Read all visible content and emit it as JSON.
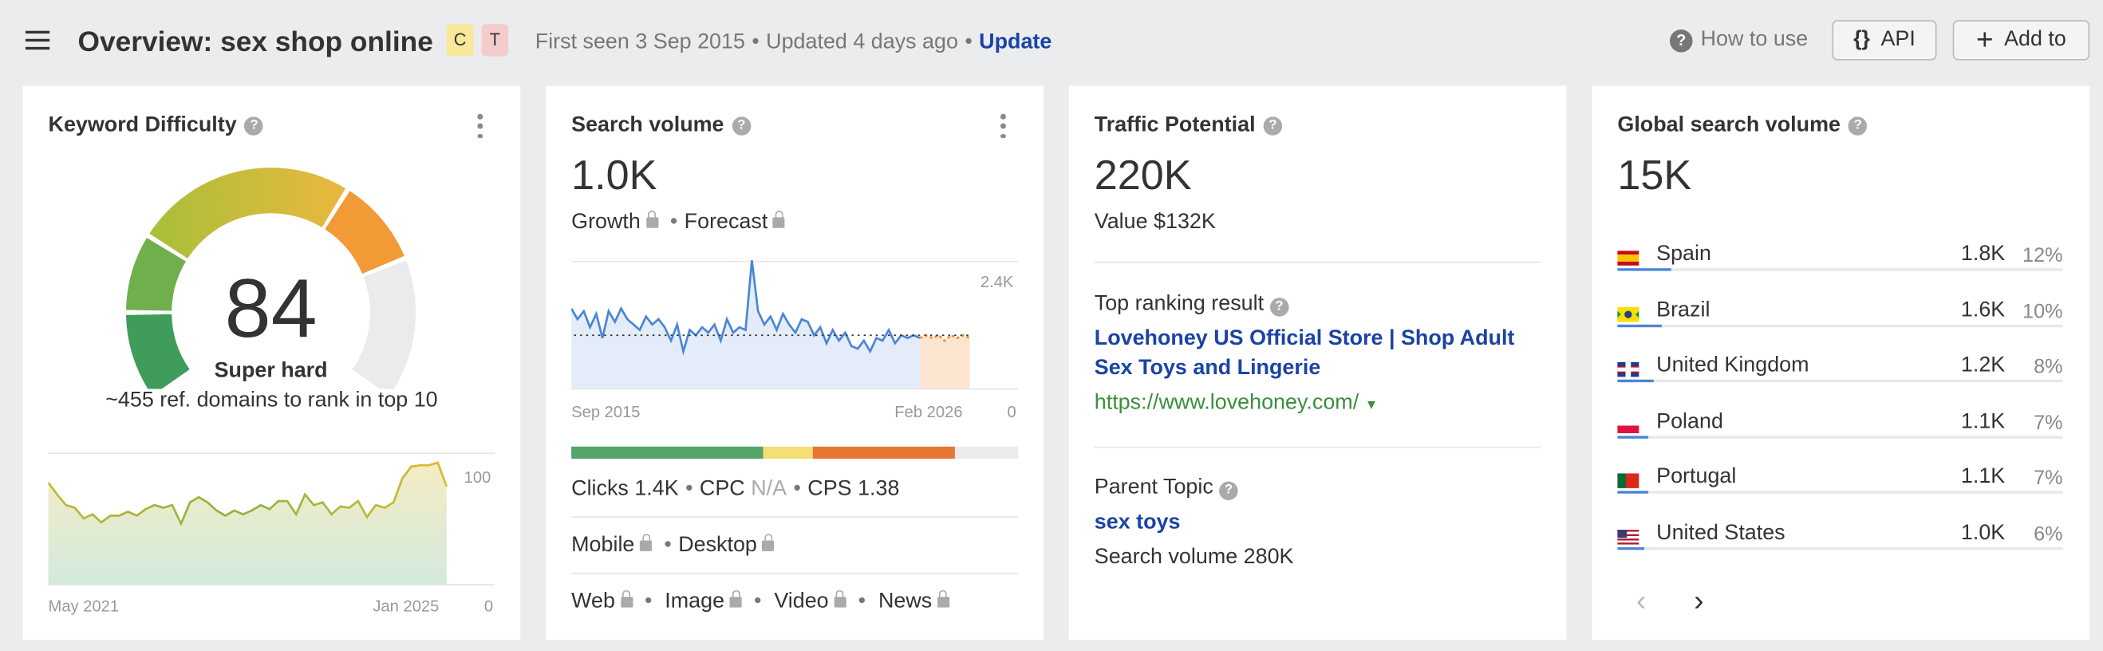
{
  "header": {
    "title": "Overview: sex shop online",
    "badges": [
      {
        "label": "C",
        "color": "#f9e79a"
      },
      {
        "label": "T",
        "color": "#f5cccc"
      }
    ],
    "first_seen": "First seen 3 Sep 2015",
    "updated": "Updated 4 days ago",
    "update_link": "Update",
    "how_to_use": "How to use",
    "api_button": "API",
    "add_button": "Add to"
  },
  "kd": {
    "title": "Keyword Difficulty",
    "value": "84",
    "level": "Super hard",
    "note": "~455 ref. domains to rank in top 10",
    "gauge_segments": [
      {
        "name": "easy",
        "color": "#3f9c5a"
      },
      {
        "name": "medium",
        "color": "#6fb04d"
      },
      {
        "name": "hard",
        "color": "#cdbf3a"
      },
      {
        "name": "very-hard",
        "color": "#f29a35"
      },
      {
        "name": "remaining",
        "color": "#ebebed"
      }
    ],
    "trend": {
      "x_start": "May 2021",
      "x_end": "Jan 2025",
      "y_max_label": "100",
      "y_min_label": "0",
      "ylim": [
        0,
        100
      ],
      "values": [
        77,
        68,
        60,
        58,
        50,
        53,
        47,
        52,
        52,
        55,
        52,
        57,
        60,
        58,
        60,
        46,
        62,
        66,
        62,
        56,
        52,
        56,
        53,
        56,
        60,
        57,
        63,
        63,
        53,
        68,
        60,
        62,
        53,
        59,
        58,
        63,
        51,
        60,
        58,
        62,
        80,
        89,
        90,
        90,
        92,
        74
      ]
    }
  },
  "sv": {
    "title": "Search volume",
    "value": "1.0K",
    "growth": "Growth",
    "forecast": "Forecast",
    "chart": {
      "x_start": "Sep 2015",
      "x_end": "Feb 2026",
      "y_max_label": "2.4K",
      "y_min_label": "0",
      "ylim": [
        0,
        2400
      ],
      "average": 1000,
      "values": [
        1500,
        1300,
        1450,
        1150,
        1400,
        950,
        1450,
        1250,
        1500,
        1300,
        1200,
        1100,
        1350,
        1200,
        1300,
        1150,
        900,
        1200,
        700,
        1100,
        1000,
        1150,
        1050,
        1200,
        900,
        1300,
        1050,
        1150,
        1100,
        2400,
        1450,
        1200,
        1350,
        1100,
        1400,
        1200,
        1050,
        1300,
        1250,
        1000,
        1150,
        850,
        1100,
        900,
        1050,
        800,
        750,
        900,
        700,
        950,
        900,
        1100,
        850,
        1000,
        950,
        1000,
        950
      ],
      "forecast": [
        1000,
        950,
        1000,
        900,
        1000,
        950,
        1000,
        950
      ]
    },
    "clicks_distribution": [
      {
        "share": 43,
        "color": "#52a46a"
      },
      {
        "share": 11,
        "color": "#f5de76"
      },
      {
        "share": 32,
        "color": "#e77633"
      },
      {
        "share": 14,
        "color": "#ebebed"
      }
    ],
    "clicks": "Clicks 1.4K",
    "cpc_label": "CPC",
    "cpc_value": "N/A",
    "cps": "CPS 1.38",
    "mobile": "Mobile",
    "desktop": "Desktop",
    "serp_types": [
      "Web",
      "Image",
      "Video",
      "News"
    ]
  },
  "tp": {
    "title": "Traffic Potential",
    "value": "220K",
    "value_usd": "Value $132K",
    "top_label": "Top ranking result",
    "top_title": "Lovehoney US Official Store | Shop Adult Sex Toys and Lingerie",
    "top_url": "https://www.lovehoney.com/",
    "parent_label": "Parent Topic",
    "parent_topic": "sex toys",
    "parent_volume": "Search volume 280K"
  },
  "gsv": {
    "title": "Global search volume",
    "value": "15K",
    "countries": [
      {
        "name": "Spain",
        "volume": "1.8K",
        "pct": "12%",
        "share": 12,
        "flag": "es"
      },
      {
        "name": "Brazil",
        "volume": "1.6K",
        "pct": "10%",
        "share": 10,
        "flag": "br"
      },
      {
        "name": "United Kingdom",
        "volume": "1.2K",
        "pct": "8%",
        "share": 8,
        "flag": "gb"
      },
      {
        "name": "Poland",
        "volume": "1.1K",
        "pct": "7%",
        "share": 7,
        "flag": "pl"
      },
      {
        "name": "Portugal",
        "volume": "1.1K",
        "pct": "7%",
        "share": 7,
        "flag": "pt"
      },
      {
        "name": "United States",
        "volume": "1.0K",
        "pct": "6%",
        "share": 6,
        "flag": "us"
      }
    ]
  }
}
